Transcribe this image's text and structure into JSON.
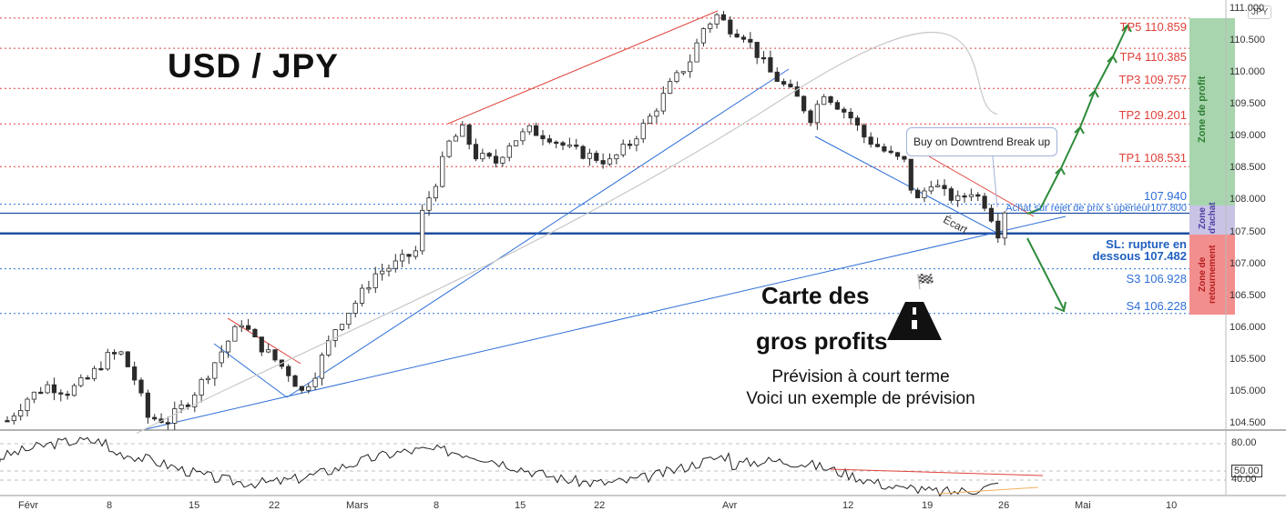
{
  "title": "USD / JPY",
  "price_axis": {
    "unit": "JPY"
  },
  "callout": "Buy on Downtrend Break up",
  "ecart_label": "Écart",
  "card": {
    "line1": "Carte des",
    "line2": "gros profits",
    "line3": "Prévision à court terme",
    "line4": "Voici un exemple de prévision"
  },
  "levels": {
    "tp5": "TP5 110.859",
    "tp4": "TP4 110.385",
    "tp3": "TP3 109.757",
    "tp2": "TP2 109.201",
    "tp1": "TP1 108.531",
    "entry_high": "107.940",
    "entry_note": "Achat sur rejet de prix s upérieur107.800",
    "sl_line1": "SL: rupture en",
    "sl_line2": "dessous 107.482",
    "s3": "S3 106.928",
    "s4": "S4 106.228"
  },
  "zones": {
    "profit": "Zone de profit",
    "achat": "Zone d'achat",
    "retournement": "Zone de retournement"
  },
  "colors": {
    "bullish": "#26a69a",
    "bearish": "#ef5350",
    "candle": "#2b2b2b",
    "trend_blue": "#2f6fd8",
    "trend_red": "#e0413a",
    "arrow_green": "#2e8b3a",
    "profit_zone": "#a8d5ae",
    "achat_zone": "#c9c3e6",
    "retour_zone": "#f28e8e"
  },
  "chart_data": {
    "type": "candlestick",
    "instrument": "USD / JPY",
    "y_ticks": [
      "111.000",
      "110.500",
      "110.000",
      "109.500",
      "109.000",
      "108.500",
      "108.000",
      "107.500",
      "107.000",
      "106.500",
      "106.000",
      "105.500",
      "105.000",
      "104.500"
    ],
    "x_ticks": [
      "Févr",
      "8",
      "15",
      "22",
      "Mars",
      "8",
      "15",
      "22",
      "Avr",
      "12",
      "19",
      "26",
      "Mai",
      "10"
    ],
    "ylim": [
      104.4,
      111.1
    ],
    "close_path": [
      [
        0,
        104.55
      ],
      [
        3,
        104.9
      ],
      [
        6,
        105.1
      ],
      [
        9,
        105.0
      ],
      [
        12,
        105.2
      ],
      [
        15,
        105.55
      ],
      [
        17,
        105.6
      ],
      [
        19,
        105.2
      ],
      [
        21,
        104.6
      ],
      [
        24,
        104.55
      ],
      [
        27,
        104.85
      ],
      [
        30,
        105.3
      ],
      [
        33,
        105.8
      ],
      [
        35,
        106.1
      ],
      [
        37,
        105.8
      ],
      [
        39,
        105.6
      ],
      [
        42,
        105.3
      ],
      [
        44,
        105.0
      ],
      [
        46,
        105.3
      ],
      [
        49,
        106.0
      ],
      [
        52,
        106.4
      ],
      [
        55,
        106.85
      ],
      [
        58,
        107.0
      ],
      [
        61,
        107.2
      ],
      [
        62,
        107.8
      ],
      [
        64,
        108.3
      ],
      [
        66,
        108.9
      ],
      [
        68,
        109.1
      ],
      [
        70,
        108.7
      ],
      [
        73,
        108.6
      ],
      [
        75,
        108.9
      ],
      [
        78,
        109.1
      ],
      [
        81,
        109.0
      ],
      [
        84,
        108.8
      ],
      [
        87,
        108.7
      ],
      [
        90,
        108.6
      ],
      [
        93,
        108.9
      ],
      [
        96,
        109.3
      ],
      [
        99,
        109.8
      ],
      [
        102,
        110.2
      ],
      [
        104,
        110.7
      ],
      [
        106,
        110.9
      ],
      [
        108,
        110.7
      ],
      [
        110,
        110.6
      ],
      [
        112,
        110.3
      ],
      [
        114,
        110.0
      ],
      [
        116,
        109.8
      ],
      [
        118,
        109.6
      ],
      [
        120,
        109.3
      ],
      [
        122,
        109.7
      ],
      [
        124,
        109.5
      ],
      [
        126,
        109.3
      ],
      [
        128,
        109.0
      ],
      [
        130,
        108.85
      ],
      [
        132,
        108.7
      ],
      [
        134,
        108.6
      ],
      [
        135,
        108.2
      ],
      [
        136,
        108.0
      ],
      [
        138,
        108.3
      ],
      [
        140,
        108.1
      ],
      [
        142,
        108.0
      ],
      [
        144,
        108.15
      ],
      [
        146,
        107.95
      ],
      [
        147,
        107.75
      ],
      [
        148,
        107.5
      ],
      [
        149,
        107.85
      ]
    ],
    "targets": [
      {
        "label": "TP5",
        "value": 110.859
      },
      {
        "label": "TP4",
        "value": 110.385
      },
      {
        "label": "TP3",
        "value": 109.757
      },
      {
        "label": "TP2",
        "value": 109.201
      },
      {
        "label": "TP1",
        "value": 108.531
      }
    ],
    "entry": [
      107.94,
      107.8
    ],
    "stop_loss": 107.482,
    "supports": [
      {
        "label": "S3",
        "value": 106.928
      },
      {
        "label": "S4",
        "value": 106.228
      }
    ],
    "rsi": {
      "levels": [
        "80.00",
        "50.00",
        "40.00"
      ],
      "current": 50
    }
  }
}
